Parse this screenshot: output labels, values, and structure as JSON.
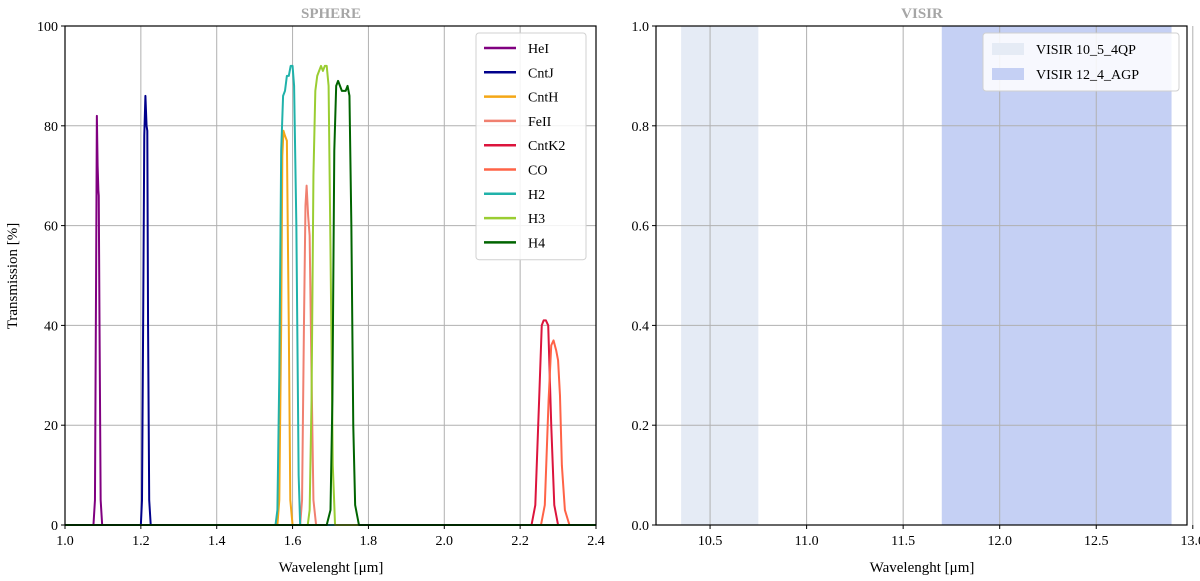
{
  "chart_data": [
    {
      "type": "line",
      "title": "SPHERE",
      "xlabel": "Wavelenght [μm]",
      "ylabel": "Transmission [%]",
      "xlim": [
        1.0,
        2.4
      ],
      "ylim": [
        0,
        100
      ],
      "xticks": [
        1.0,
        1.2,
        1.4,
        1.6,
        1.8,
        2.0,
        2.2,
        2.4
      ],
      "xtick_labels": [
        "1.0",
        "1.2",
        "1.4",
        "1.6",
        "1.8",
        "2.0",
        "2.2",
        "2.4"
      ],
      "yticks": [
        0,
        20,
        40,
        60,
        80,
        100
      ],
      "ytick_labels": [
        "0",
        "20",
        "40",
        "60",
        "80",
        "100"
      ],
      "grid": true,
      "legend_position": "top-right",
      "series": [
        {
          "name": "HeI",
          "color": "#800080",
          "x": [
            1.0,
            1.075,
            1.079,
            1.082,
            1.084,
            1.086,
            1.088,
            1.089,
            1.091,
            1.094,
            1.098,
            2.4
          ],
          "y": [
            0,
            0,
            5,
            50,
            82,
            72,
            67,
            66,
            40,
            5,
            0,
            0
          ]
        },
        {
          "name": "CntJ",
          "color": "#00008b",
          "x": [
            1.0,
            1.2,
            1.203,
            1.206,
            1.209,
            1.212,
            1.215,
            1.217,
            1.219,
            1.222,
            1.226,
            2.4
          ],
          "y": [
            0,
            0,
            5,
            40,
            78,
            86,
            80,
            79,
            40,
            5,
            0,
            0
          ]
        },
        {
          "name": "CntH",
          "color": "#f4a716",
          "x": [
            1.0,
            1.56,
            1.565,
            1.57,
            1.573,
            1.576,
            1.58,
            1.585,
            1.59,
            1.594,
            1.6,
            2.4
          ],
          "y": [
            0,
            0,
            5,
            40,
            74,
            79,
            78,
            77,
            40,
            5,
            0,
            0
          ]
        },
        {
          "name": "FeII",
          "color": "#f08070",
          "x": [
            1.0,
            1.62,
            1.625,
            1.63,
            1.634,
            1.637,
            1.641,
            1.645,
            1.65,
            1.655,
            1.662,
            2.4
          ],
          "y": [
            0,
            0,
            5,
            40,
            64,
            68,
            62,
            58,
            30,
            5,
            0,
            0
          ]
        },
        {
          "name": "CntK2",
          "color": "#dc143c",
          "x": [
            1.0,
            2.23,
            2.24,
            2.25,
            2.257,
            2.262,
            2.268,
            2.274,
            2.282,
            2.29,
            2.3,
            2.4
          ],
          "y": [
            0,
            0,
            4,
            25,
            40,
            41,
            41,
            40,
            20,
            4,
            0,
            0
          ]
        },
        {
          "name": "CO",
          "color": "#ff6347",
          "x": [
            1.0,
            2.255,
            2.265,
            2.275,
            2.282,
            2.288,
            2.295,
            2.3,
            2.305,
            2.31,
            2.318,
            2.33,
            2.4
          ],
          "y": [
            0,
            0,
            4,
            25,
            36,
            37,
            35,
            33,
            26,
            12,
            3,
            0,
            0
          ]
        },
        {
          "name": "H2",
          "color": "#20b2aa",
          "x": [
            1.0,
            1.555,
            1.56,
            1.565,
            1.57,
            1.575,
            1.58,
            1.585,
            1.59,
            1.595,
            1.6,
            1.604,
            1.61,
            1.616,
            1.62,
            2.4
          ],
          "y": [
            0,
            0,
            3,
            30,
            75,
            86,
            87,
            90,
            90,
            92,
            92,
            88,
            60,
            10,
            0,
            0
          ]
        },
        {
          "name": "H3",
          "color": "#9acd32",
          "x": [
            1.0,
            1.64,
            1.645,
            1.65,
            1.655,
            1.66,
            1.665,
            1.67,
            1.675,
            1.68,
            1.685,
            1.69,
            1.695,
            1.7,
            1.706,
            1.712,
            2.4
          ],
          "y": [
            0,
            0,
            3,
            25,
            70,
            87,
            90,
            91,
            92,
            91,
            92,
            92,
            88,
            55,
            12,
            0,
            0
          ]
        },
        {
          "name": "H4",
          "color": "#006400",
          "x": [
            1.0,
            1.69,
            1.7,
            1.705,
            1.71,
            1.715,
            1.72,
            1.725,
            1.73,
            1.735,
            1.74,
            1.745,
            1.75,
            1.755,
            1.76,
            1.765,
            1.775,
            2.4
          ],
          "y": [
            0,
            0,
            3,
            25,
            75,
            88,
            89,
            88,
            87,
            87,
            87,
            88,
            86,
            60,
            20,
            4,
            0,
            0
          ]
        }
      ]
    },
    {
      "type": "area",
      "title": "VISIR",
      "xlabel": "Wavelenght [μm]",
      "ylabel": "",
      "xlim": [
        10.22,
        12.97
      ],
      "ylim": [
        0.0,
        1.0
      ],
      "xticks": [
        10.5,
        11.0,
        11.5,
        12.0,
        12.5,
        13.0
      ],
      "xtick_labels": [
        "10.5",
        "11.0",
        "11.5",
        "12.0",
        "12.5",
        "13.0"
      ],
      "yticks": [
        0.0,
        0.2,
        0.4,
        0.6,
        0.8,
        1.0
      ],
      "ytick_labels": [
        "0.0",
        "0.2",
        "0.4",
        "0.6",
        "0.8",
        "1.0"
      ],
      "grid": true,
      "legend_position": "top-right",
      "series": [
        {
          "name": "VISIR 10_5_4QP",
          "color": "#e5ebf5",
          "x": [
            10.35,
            10.75
          ],
          "y": [
            1.0,
            1.0
          ]
        },
        {
          "name": "VISIR 12_4_AGP",
          "color": "#c5d0f4",
          "x": [
            11.7,
            12.89
          ],
          "y": [
            1.0,
            1.0
          ]
        }
      ]
    }
  ]
}
